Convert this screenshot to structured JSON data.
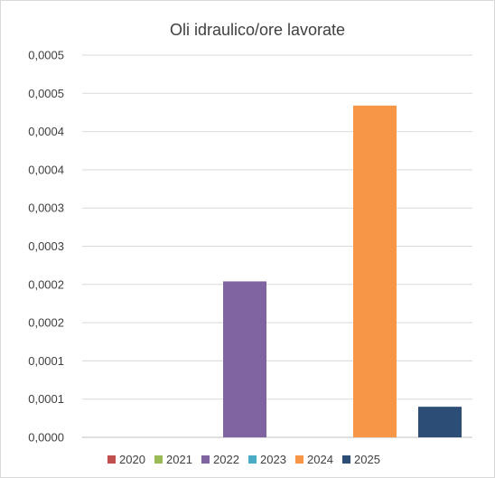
{
  "chart_data": {
    "type": "bar",
    "title": "Oli idraulico/ore lavorate",
    "xlabel": "",
    "ylabel": "",
    "categories": [
      "2020",
      "2021",
      "2022",
      "2023",
      "2024",
      "2025"
    ],
    "values": [
      0,
      0,
      0.000204,
      0,
      0.000434,
      4e-05
    ],
    "colors": [
      "#c0504d",
      "#9bbb59",
      "#8064a2",
      "#4bacc6",
      "#f79646",
      "#2c4d75"
    ],
    "ylim": [
      0,
      0.0005
    ],
    "yticks": [
      0,
      5e-05,
      0.0001,
      0.00015,
      0.0002,
      0.00025,
      0.0003,
      0.00035,
      0.0004,
      0.00045,
      0.0005
    ],
    "ytick_labels": [
      "0,0000",
      "0,0001",
      "0,0001",
      "0,0002",
      "0,0002",
      "0,0003",
      "0,0003",
      "0,0004",
      "0,0004",
      "0,0005",
      "0,0005"
    ],
    "grid": true,
    "legend_position": "bottom"
  }
}
